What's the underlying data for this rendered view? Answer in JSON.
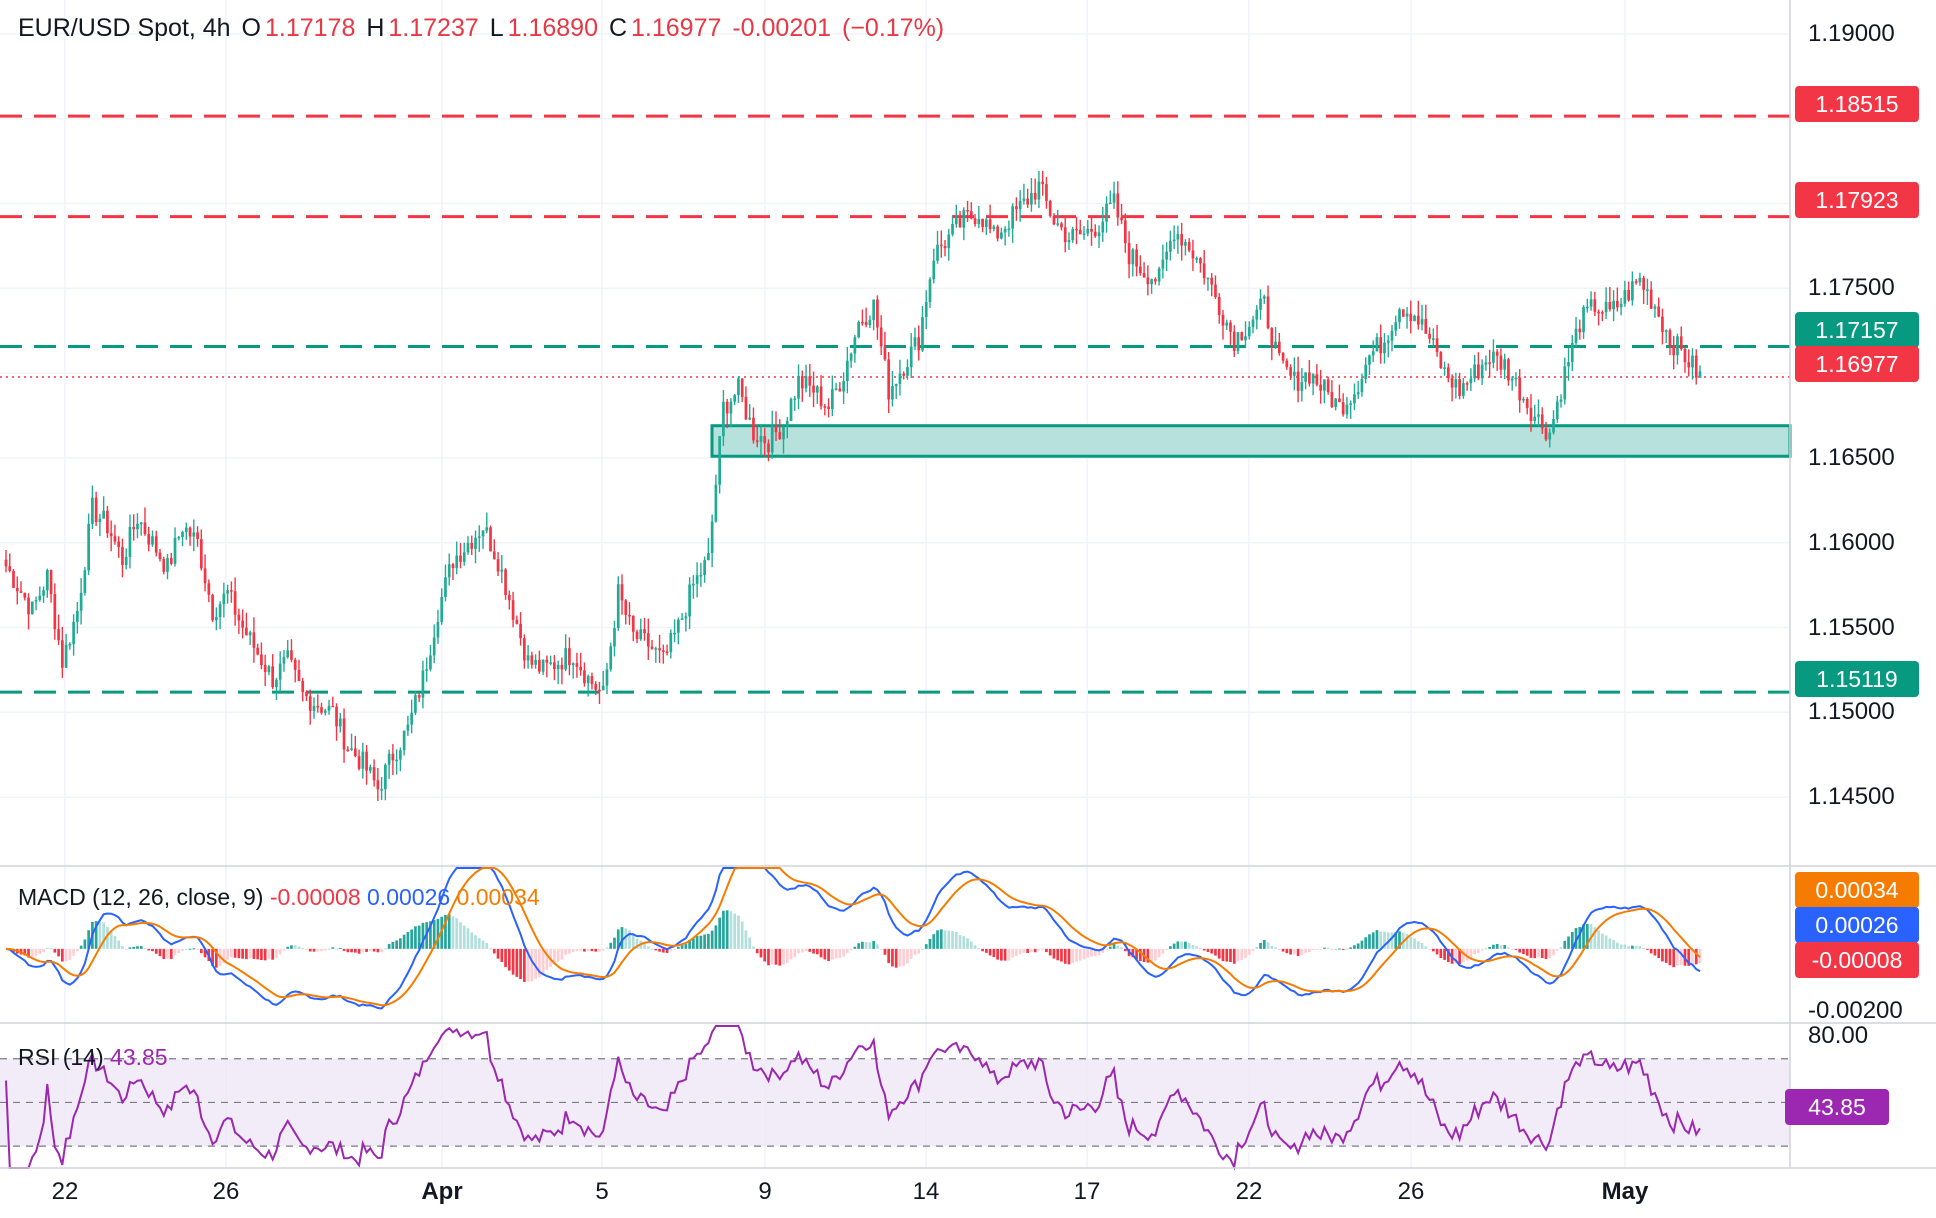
{
  "header": {
    "symbol": "EUR/USD Spot, 4h",
    "open_label": "O",
    "open": "1.17178",
    "high_label": "H",
    "high": "1.17237",
    "low_label": "L",
    "low": "1.16890",
    "close_label": "C",
    "close": "1.16977",
    "change": "-0.00201",
    "change_pct": "(−0.17%)"
  },
  "colors": {
    "up": "#22ab94",
    "down": "#f23645",
    "resistance": "#f23645",
    "support": "#089981",
    "zone_fill": "#b2dfdb",
    "macd_line": "#2962ff",
    "signal_line": "#f57c00",
    "rsi_line": "#9c27b0",
    "rsi_band": "#ede7f6"
  },
  "chart_data": {
    "type": "candlestick",
    "title": "EUR/USD Spot, 4h",
    "ylim": [
      1.141,
      1.192
    ],
    "price_ticks": [
      "1.19000",
      "1.17500",
      "1.16500",
      "1.16000",
      "1.15500",
      "1.15000",
      "1.14500"
    ],
    "x_labels": [
      "22",
      "26",
      "Apr",
      "5",
      "9",
      "14",
      "17",
      "22",
      "26",
      "May"
    ],
    "bold_labels": [
      "Apr",
      "May"
    ],
    "levels": [
      {
        "value": 1.18515,
        "label": "1.18515",
        "kind": "resistance"
      },
      {
        "value": 1.17923,
        "label": "1.17923",
        "kind": "resistance"
      },
      {
        "value": 1.17157,
        "label": "1.17157",
        "kind": "support"
      },
      {
        "value": 1.15119,
        "label": "1.15119",
        "kind": "support"
      }
    ],
    "last_price": {
      "value": 1.16977,
      "label": "1.16977"
    },
    "zone": {
      "low": 1.1651,
      "high": 1.1669
    },
    "path": [
      1.159,
      1.1575,
      1.156,
      1.158,
      1.153,
      1.156,
      1.162,
      1.161,
      1.159,
      1.1615,
      1.16,
      1.1585,
      1.161,
      1.16,
      1.156,
      1.157,
      1.155,
      1.1535,
      1.152,
      1.153,
      1.151,
      1.1505,
      1.15,
      1.148,
      1.147,
      1.1455,
      1.1475,
      1.149,
      1.152,
      1.156,
      1.159,
      1.16,
      1.161,
      1.159,
      1.156,
      1.153,
      1.1525,
      1.153,
      1.1535,
      1.152,
      1.151,
      1.157,
      1.1545,
      1.154,
      1.153,
      1.155,
      1.1575,
      1.159,
      1.168,
      1.169,
      1.1665,
      1.166,
      1.167,
      1.1695,
      1.169,
      1.168,
      1.17,
      1.173,
      1.174,
      1.169,
      1.1705,
      1.172,
      1.177,
      1.178,
      1.179,
      1.1795,
      1.178,
      1.179,
      1.18,
      1.181,
      1.179,
      1.178,
      1.1782,
      1.1788,
      1.18,
      1.177,
      1.176,
      1.1755,
      1.1785,
      1.1775,
      1.176,
      1.174,
      1.172,
      1.173,
      1.174,
      1.1705,
      1.1695,
      1.17,
      1.169,
      1.168,
      1.169,
      1.171,
      1.172,
      1.174,
      1.1735,
      1.172,
      1.17,
      1.169,
      1.17,
      1.171,
      1.1705,
      1.169,
      1.1675,
      1.1665,
      1.17,
      1.173,
      1.174,
      1.1735,
      1.1745,
      1.1755,
      1.174,
      1.172,
      1.171,
      1.1698
    ],
    "macd": {
      "name": "MACD (12, 26, close, 9)",
      "macd_label": "0.00026",
      "signal_label": "0.00034",
      "histogram_label": "-0.00008",
      "scale_label": "-0.00200",
      "range": [
        -0.0022,
        0.0025
      ]
    },
    "rsi": {
      "name": "RSI (14)",
      "value_label": "43.85",
      "scale_label": "80.00",
      "range": [
        20,
        85
      ],
      "upper": 70,
      "middle": 50,
      "lower": 30
    }
  }
}
